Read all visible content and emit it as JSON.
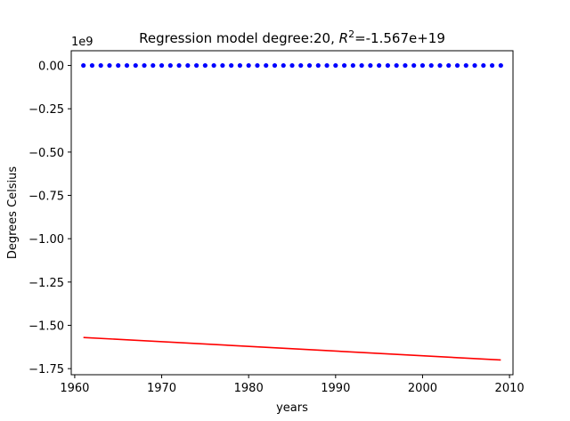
{
  "chart_data": {
    "type": "scatter+line",
    "title_prefix": "Regression model degree:20, ",
    "title_r": "R",
    "title_sup": "2",
    "title_suffix": "=-1.567e+19",
    "xlabel": "years",
    "ylabel": "Degrees Celsius",
    "y_offset_label": "1e9",
    "xlim": [
      1959.6,
      2010.4
    ],
    "ylim": [
      -1.785,
      0.085
    ],
    "x_ticks": [
      1960,
      1970,
      1980,
      1990,
      2000,
      2010
    ],
    "y_ticks": [
      0.0,
      -0.25,
      -0.5,
      -0.75,
      -1.0,
      -1.25,
      -1.5,
      -1.75
    ],
    "y_tick_labels": [
      "0.00",
      "−0.25",
      "−0.50",
      "−0.75",
      "−1.00",
      "−1.25",
      "−1.50",
      "−1.75"
    ],
    "observed": {
      "x": [
        1961,
        1962,
        1963,
        1964,
        1965,
        1966,
        1967,
        1968,
        1969,
        1970,
        1971,
        1972,
        1973,
        1974,
        1975,
        1976,
        1977,
        1978,
        1979,
        1980,
        1981,
        1982,
        1983,
        1984,
        1985,
        1986,
        1987,
        1988,
        1989,
        1990,
        1991,
        1992,
        1993,
        1994,
        1995,
        1996,
        1997,
        1998,
        1999,
        2000,
        2001,
        2002,
        2003,
        2004,
        2005,
        2006,
        2007,
        2008,
        2009
      ],
      "y": 0.0,
      "color": "#0000ff"
    },
    "model": {
      "x": [
        1961,
        2009
      ],
      "y": [
        -1.57,
        -1.7
      ],
      "color": "#ff0000"
    }
  }
}
